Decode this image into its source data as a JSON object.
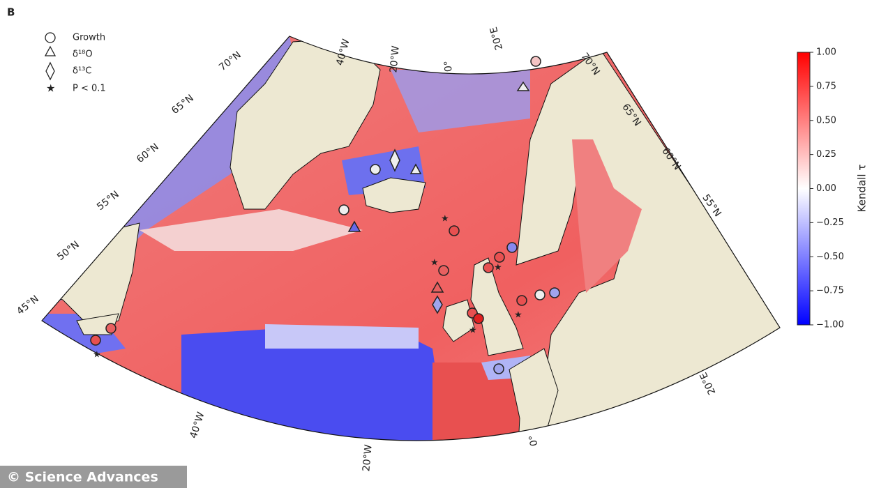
{
  "panel_label": "B",
  "legend": [
    "Growth",
    "δ¹⁸O",
    "δ¹³C",
    "P < 0.1"
  ],
  "lat_labels_left": [
    "70°N",
    "65°N",
    "60°N",
    "55°N",
    "50°N",
    "45°N"
  ],
  "lat_labels_right": [
    "70°N",
    "65°N",
    "60°N",
    "55°N"
  ],
  "lon_labels_top": [
    "40°W",
    "20°W",
    "0°",
    "20°E"
  ],
  "lon_labels_bottom": [
    "40°W",
    "20°W",
    "0°",
    "20°E"
  ],
  "colorbar": {
    "label": "Kendall τ",
    "ticks": [
      {
        "value": 1,
        "label": "1.00"
      },
      {
        "value": 0.75,
        "label": "0.75"
      },
      {
        "value": 0.5,
        "label": "0.50"
      },
      {
        "value": 0.25,
        "label": "0.25"
      },
      {
        "value": 0,
        "label": "0.00"
      },
      {
        "value": -0.25,
        "label": "−0.25"
      },
      {
        "value": -0.5,
        "label": "−0.50"
      },
      {
        "value": -0.75,
        "label": "−0.75"
      },
      {
        "value": -1,
        "label": "−1.00"
      }
    ]
  },
  "credit": "© Science Advances"
}
